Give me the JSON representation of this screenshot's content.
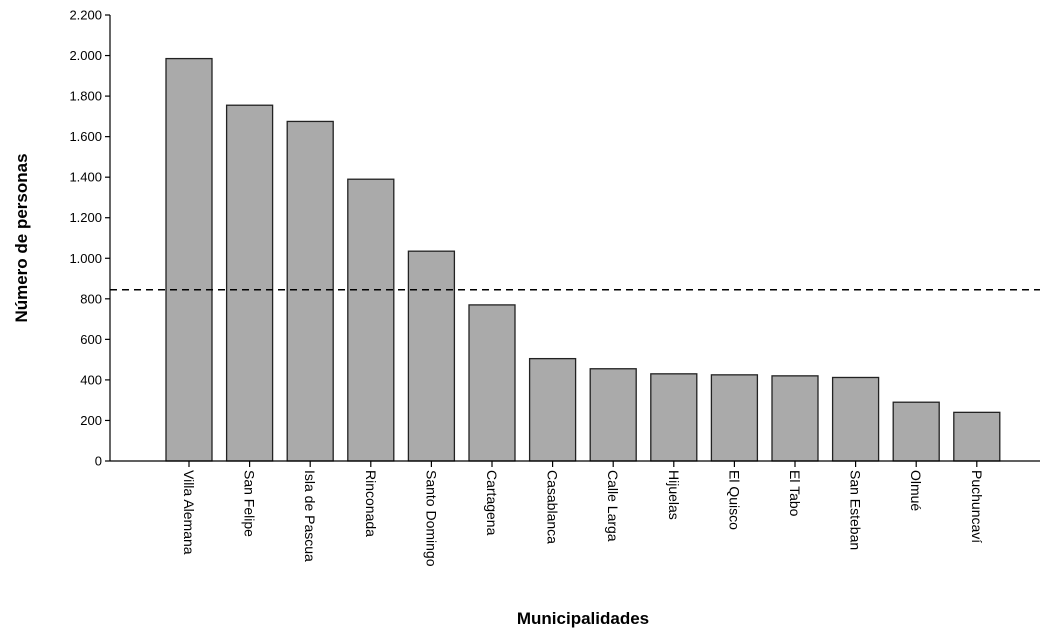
{
  "chart_data": {
    "type": "bar",
    "title": "",
    "xlabel": "Municipalidades",
    "ylabel": "Número de personas",
    "categories": [
      "Villa Alemana",
      "San Felipe",
      "Isla de Pascua",
      "Rinconada",
      "Santo Domingo",
      "Cartagena",
      "Casablanca",
      "Calle Larga",
      "Hijuelas",
      "El Quisco",
      "El Tabo",
      "San Esteban",
      "Olmué",
      "Puchuncaví"
    ],
    "values": [
      1985,
      1755,
      1675,
      1390,
      1035,
      770,
      505,
      455,
      430,
      425,
      420,
      412,
      290,
      240
    ],
    "ylim": [
      0,
      2200
    ],
    "yticks": [
      0,
      200,
      400,
      600,
      800,
      1000,
      1200,
      1400,
      1600,
      1800,
      2000,
      2200
    ],
    "ytick_labels": [
      "0",
      "200",
      "400",
      "600",
      "800",
      "1.000",
      "1.200",
      "1.400",
      "1.600",
      "1.800",
      "2.000",
      "2.200"
    ],
    "reference_line": {
      "value": 845,
      "style": "dashed"
    },
    "grid": false,
    "legend": "none",
    "colors": {
      "bar_fill": "#aaaaaa",
      "bar_stroke": "#222222",
      "axis": "#000000",
      "reference_line": "#000000"
    }
  }
}
